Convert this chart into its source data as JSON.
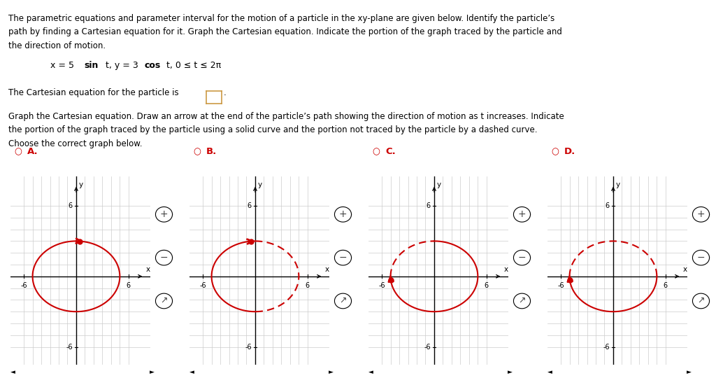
{
  "line1": "The parametric equations and parameter interval for the motion of a particle in the xy-plane are given below. Identify the particle’s",
  "line2": "path by finding a Cartesian equation for it. Graph the Cartesian equation. Indicate the portion of the graph traced by the particle and",
  "line3": "the direction of motion.",
  "eq_text": "x = 5 sin t, y = 3 cos t, 0 ≤ t ≤ 2π",
  "cartesian_line": "The Cartesian equation for the particle is",
  "instr1": "Graph the Cartesian equation. Draw an arrow at the end of the particle’s path showing the direction of motion as t increases. Indicate",
  "instr2": "the portion of the graph traced by the particle using a solid curve and the portion not traced by the particle by a dashed curve.",
  "instr3": "Choose the correct graph below.",
  "graph_labels": [
    "A.",
    "B.",
    "C.",
    "D."
  ],
  "a_semi": 5,
  "b_semi": 3,
  "red_color": "#cc0000",
  "background_color": "#ffffff",
  "grid_color": "#cccccc",
  "axis_color": "#000000",
  "separator_color": "#aaaaaa"
}
